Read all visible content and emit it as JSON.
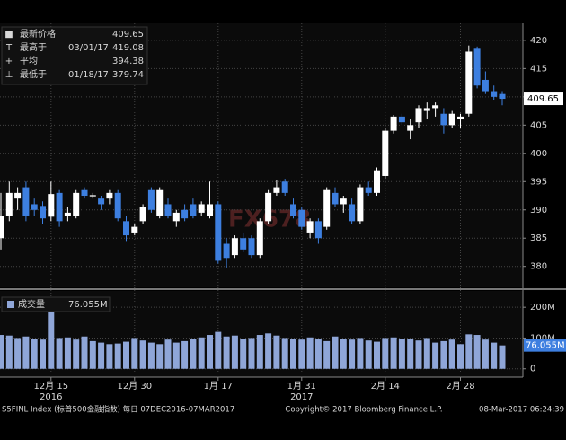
{
  "chart_data": {
    "type": "candlestick",
    "watermark": "FX678",
    "legend": [
      {
        "label": "最新价格",
        "value": 409.65
      },
      {
        "label": "最高于",
        "date": "03/01/17",
        "value": 419.08
      },
      {
        "label": "平均",
        "value": 394.38
      },
      {
        "label": "最低于",
        "date": "01/18/17",
        "value": 379.74
      }
    ],
    "up_color": "#ffffff",
    "down_color": "#3d7fe0",
    "open": [
      385,
      389,
      392,
      394,
      391,
      390.7,
      388.8,
      393,
      389,
      389,
      393.5,
      392.4,
      392,
      392,
      393,
      388,
      386,
      388,
      393.5,
      389,
      391,
      388,
      390,
      391,
      389.5,
      389,
      391,
      384,
      382,
      385,
      385,
      382,
      388,
      393,
      395,
      391,
      390,
      386,
      388,
      387,
      393,
      391,
      391,
      388,
      394,
      393,
      396,
      404,
      406.5,
      404,
      405.5,
      407.5,
      408,
      407,
      405,
      406,
      407,
      418.5,
      413,
      411,
      410.5
    ],
    "high": [
      393,
      395,
      394,
      395,
      392,
      391.5,
      395,
      393.5,
      390.5,
      393.5,
      394,
      393,
      392.5,
      393.5,
      393.5,
      389,
      387.5,
      391,
      394,
      394,
      392,
      390,
      391,
      392,
      391.5,
      395,
      391.5,
      385,
      385.5,
      386,
      385.5,
      388.5,
      393.5,
      395.2,
      395.5,
      392,
      390.5,
      388.5,
      388.5,
      394,
      394,
      392.5,
      392,
      394.5,
      395,
      397.5,
      404.5,
      406.8,
      407,
      406,
      408.5,
      409,
      409,
      408,
      407.5,
      407,
      419.08,
      418.9,
      414.5,
      412,
      411
    ],
    "low": [
      383,
      388,
      390,
      388,
      389,
      387.5,
      388,
      387,
      388,
      388.5,
      392,
      392,
      390,
      391,
      388,
      384.5,
      385.5,
      387.5,
      389.5,
      388.5,
      388.5,
      387,
      388,
      388.5,
      389,
      388.5,
      380.5,
      379.74,
      381.5,
      382.5,
      381.5,
      381.5,
      387.5,
      392.5,
      392.5,
      388.5,
      386.5,
      385,
      384,
      386.5,
      390.5,
      389.5,
      387.5,
      387.5,
      392.5,
      392.5,
      395.5,
      403.5,
      405,
      402.5,
      404.5,
      406,
      406.5,
      403.5,
      404.5,
      404.5,
      406.5,
      411.5,
      410.5,
      409.5,
      408.5
    ],
    "close": [
      389,
      393,
      393,
      389,
      390,
      388.5,
      392.8,
      388,
      389.5,
      393,
      392.5,
      392.6,
      391,
      393,
      388.5,
      385.5,
      387,
      390.5,
      390,
      393.5,
      389,
      389.5,
      388.5,
      389,
      391,
      391,
      381,
      381.5,
      385,
      383,
      382,
      388,
      393,
      394,
      393,
      389,
      387,
      388,
      385,
      393.5,
      391,
      392,
      388,
      394,
      393,
      397,
      404,
      406.5,
      405.5,
      405,
      408,
      408,
      408.5,
      405,
      407,
      406.5,
      418,
      412,
      411,
      410,
      409.65
    ],
    "ylim": [
      376.3,
      423
    ],
    "yticks": [
      380,
      385,
      390,
      395,
      400,
      405,
      410,
      415,
      420
    ],
    "volume_title": "成交量",
    "volume": [
      110,
      108,
      100,
      105,
      98,
      95,
      185,
      100,
      102,
      95,
      105,
      90,
      85,
      80,
      82,
      88,
      100,
      92,
      85,
      80,
      95,
      85,
      90,
      98,
      102,
      110,
      120,
      105,
      108,
      98,
      100,
      110,
      115,
      108,
      100,
      98,
      95,
      102,
      96,
      90,
      105,
      98,
      95,
      100,
      92,
      88,
      100,
      102,
      98,
      96,
      92,
      100,
      85,
      90,
      95,
      80,
      112,
      110,
      95,
      85,
      76.055
    ],
    "volume_last_label": "76.055M",
    "volume_color": "#8fa6d8",
    "volume_ylim": [
      -27,
      253
    ],
    "volume_yticks": [
      0,
      {
        "value": 100,
        "label": "100M"
      },
      {
        "value": 200,
        "label": "200M"
      }
    ],
    "xticks": [
      {
        "value": 6,
        "label": "12月 15"
      },
      {
        "value": 16,
        "label": "12月 30"
      },
      {
        "value": 26,
        "label": "1月 17"
      },
      {
        "value": 36,
        "label": "1月 31"
      },
      {
        "value": 46,
        "label": "2月 14"
      },
      {
        "value": 55,
        "label": "2月 28"
      }
    ],
    "years": [
      {
        "value": 6,
        "label": "2016"
      },
      {
        "value": 36,
        "label": "2017"
      }
    ],
    "footer": [
      "S5FINL Index (标普500金融指数)  每日 07DEC2016-07MAR2017",
      "Copyright© 2017 Bloomberg Finance L.P.",
      "08-Mar-2017 06:24:39"
    ]
  }
}
